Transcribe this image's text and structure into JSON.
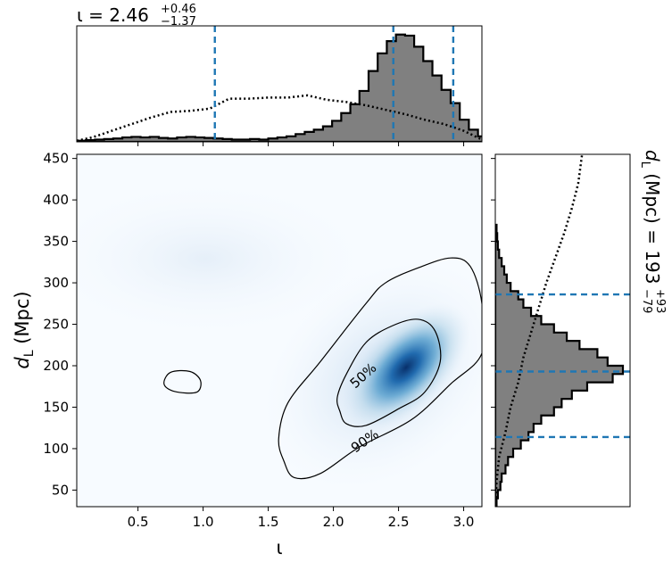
{
  "chart_data": {
    "type": "corner-plot",
    "top_marginal": {
      "title_symbol": "ι",
      "title_median": "2.46",
      "title_plus": "+0.46",
      "title_minus": "−1.37",
      "quantile_lines": [
        1.09,
        2.46,
        2.92
      ],
      "xlim": [
        0.03,
        3.14
      ],
      "histogram_bins": [
        [
          0.03,
          0.01
        ],
        [
          0.1,
          0.015
        ],
        [
          0.17,
          0.02
        ],
        [
          0.24,
          0.025
        ],
        [
          0.31,
          0.03
        ],
        [
          0.38,
          0.04
        ],
        [
          0.45,
          0.045
        ],
        [
          0.52,
          0.04
        ],
        [
          0.59,
          0.045
        ],
        [
          0.66,
          0.035
        ],
        [
          0.73,
          0.03
        ],
        [
          0.8,
          0.04
        ],
        [
          0.87,
          0.045
        ],
        [
          0.94,
          0.04
        ],
        [
          1.01,
          0.035
        ],
        [
          1.08,
          0.03
        ],
        [
          1.15,
          0.025
        ],
        [
          1.22,
          0.02
        ],
        [
          1.29,
          0.02
        ],
        [
          1.36,
          0.025
        ],
        [
          1.43,
          0.02
        ],
        [
          1.5,
          0.03
        ],
        [
          1.57,
          0.04
        ],
        [
          1.64,
          0.05
        ],
        [
          1.71,
          0.07
        ],
        [
          1.78,
          0.09
        ],
        [
          1.85,
          0.11
        ],
        [
          1.92,
          0.14
        ],
        [
          1.99,
          0.19
        ],
        [
          2.06,
          0.26
        ],
        [
          2.13,
          0.34
        ],
        [
          2.2,
          0.46
        ],
        [
          2.27,
          0.64
        ],
        [
          2.34,
          0.8
        ],
        [
          2.41,
          0.91
        ],
        [
          2.48,
          0.97
        ],
        [
          2.55,
          0.96
        ],
        [
          2.62,
          0.86
        ],
        [
          2.69,
          0.73
        ],
        [
          2.76,
          0.6
        ],
        [
          2.83,
          0.47
        ],
        [
          2.9,
          0.35
        ],
        [
          2.97,
          0.2
        ],
        [
          3.04,
          0.11
        ],
        [
          3.11,
          0.05
        ]
      ],
      "prior_curve": [
        [
          0.03,
          0.01
        ],
        [
          0.15,
          0.04
        ],
        [
          0.3,
          0.1
        ],
        [
          0.45,
          0.16
        ],
        [
          0.6,
          0.22
        ],
        [
          0.75,
          0.27
        ],
        [
          0.9,
          0.28
        ],
        [
          1.05,
          0.3
        ],
        [
          1.2,
          0.39
        ],
        [
          1.35,
          0.39
        ],
        [
          1.5,
          0.4
        ],
        [
          1.65,
          0.4
        ],
        [
          1.8,
          0.42
        ],
        [
          1.95,
          0.38
        ],
        [
          2.1,
          0.36
        ],
        [
          2.25,
          0.33
        ],
        [
          2.4,
          0.29
        ],
        [
          2.55,
          0.25
        ],
        [
          2.7,
          0.2
        ],
        [
          2.85,
          0.16
        ],
        [
          3.0,
          0.1
        ],
        [
          3.14,
          0.02
        ]
      ]
    },
    "joint": {
      "xlabel": "ι",
      "ylabel": "d_L (Mpc)",
      "xlim": [
        0.03,
        3.14
      ],
      "ylim": [
        30,
        455
      ],
      "xticks": [
        0.5,
        1.0,
        1.5,
        2.0,
        2.5,
        3.0
      ],
      "xtick_labels": [
        "0.5",
        "1.0",
        "1.5",
        "2.0",
        "2.5",
        "3.0"
      ],
      "yticks": [
        50,
        100,
        150,
        200,
        250,
        300,
        350,
        400,
        450
      ],
      "ytick_labels": [
        "50",
        "100",
        "150",
        "200",
        "250",
        "300",
        "350",
        "400",
        "450"
      ],
      "density_peak": [
        2.46,
        193
      ],
      "contour_labels": [
        "50%",
        "90%"
      ],
      "contour_50": [
        [
          2.05,
          145
        ],
        [
          2.1,
          130
        ],
        [
          2.25,
          128
        ],
        [
          2.5,
          148
        ],
        [
          2.7,
          168
        ],
        [
          2.82,
          205
        ],
        [
          2.78,
          242
        ],
        [
          2.65,
          256
        ],
        [
          2.45,
          248
        ],
        [
          2.25,
          228
        ],
        [
          2.1,
          190
        ],
        [
          2.03,
          162
        ]
      ],
      "contour_90": [
        [
          1.7,
          65
        ],
        [
          1.9,
          70
        ],
        [
          2.2,
          102
        ],
        [
          2.6,
          135
        ],
        [
          2.9,
          178
        ],
        [
          3.14,
          215
        ],
        [
          3.14,
          275
        ],
        [
          3.05,
          320
        ],
        [
          2.9,
          330
        ],
        [
          2.65,
          318
        ],
        [
          2.4,
          300
        ],
        [
          2.25,
          275
        ],
        [
          1.9,
          205
        ],
        [
          1.65,
          155
        ],
        [
          1.58,
          112
        ],
        [
          1.62,
          85
        ]
      ],
      "contour_island": [
        [
          0.7,
          178
        ],
        [
          0.78,
          169
        ],
        [
          0.95,
          168
        ],
        [
          0.98,
          182
        ],
        [
          0.9,
          193
        ],
        [
          0.75,
          192
        ]
      ]
    },
    "right_marginal": {
      "title": "d_L (Mpc) = 193",
      "title_plus": "+93",
      "title_minus": "−79",
      "quantile_lines": [
        114,
        193,
        286
      ],
      "ylim": [
        30,
        455
      ],
      "histogram_bins": [
        [
          30,
          0.01
        ],
        [
          40,
          0.02
        ],
        [
          50,
          0.04
        ],
        [
          60,
          0.05
        ],
        [
          70,
          0.08
        ],
        [
          80,
          0.1
        ],
        [
          90,
          0.14
        ],
        [
          100,
          0.2
        ],
        [
          110,
          0.26
        ],
        [
          120,
          0.3
        ],
        [
          130,
          0.36
        ],
        [
          140,
          0.46
        ],
        [
          150,
          0.52
        ],
        [
          160,
          0.6
        ],
        [
          170,
          0.72
        ],
        [
          180,
          0.92
        ],
        [
          190,
          1.0
        ],
        [
          200,
          0.88
        ],
        [
          210,
          0.8
        ],
        [
          220,
          0.66
        ],
        [
          230,
          0.56
        ],
        [
          240,
          0.46
        ],
        [
          250,
          0.36
        ],
        [
          260,
          0.28
        ],
        [
          270,
          0.22
        ],
        [
          280,
          0.18
        ],
        [
          290,
          0.12
        ],
        [
          300,
          0.09
        ],
        [
          310,
          0.07
        ],
        [
          320,
          0.05
        ],
        [
          330,
          0.03
        ],
        [
          340,
          0.02
        ],
        [
          350,
          0.015
        ],
        [
          360,
          0.01
        ]
      ],
      "prior_curve": [
        [
          30,
          0.0
        ],
        [
          60,
          0.01
        ],
        [
          90,
          0.03
        ],
        [
          120,
          0.08
        ],
        [
          150,
          0.12
        ],
        [
          180,
          0.18
        ],
        [
          210,
          0.22
        ],
        [
          240,
          0.28
        ],
        [
          270,
          0.34
        ],
        [
          300,
          0.4
        ],
        [
          330,
          0.47
        ],
        [
          360,
          0.54
        ],
        [
          390,
          0.6
        ],
        [
          420,
          0.65
        ],
        [
          455,
          0.68
        ]
      ]
    }
  }
}
